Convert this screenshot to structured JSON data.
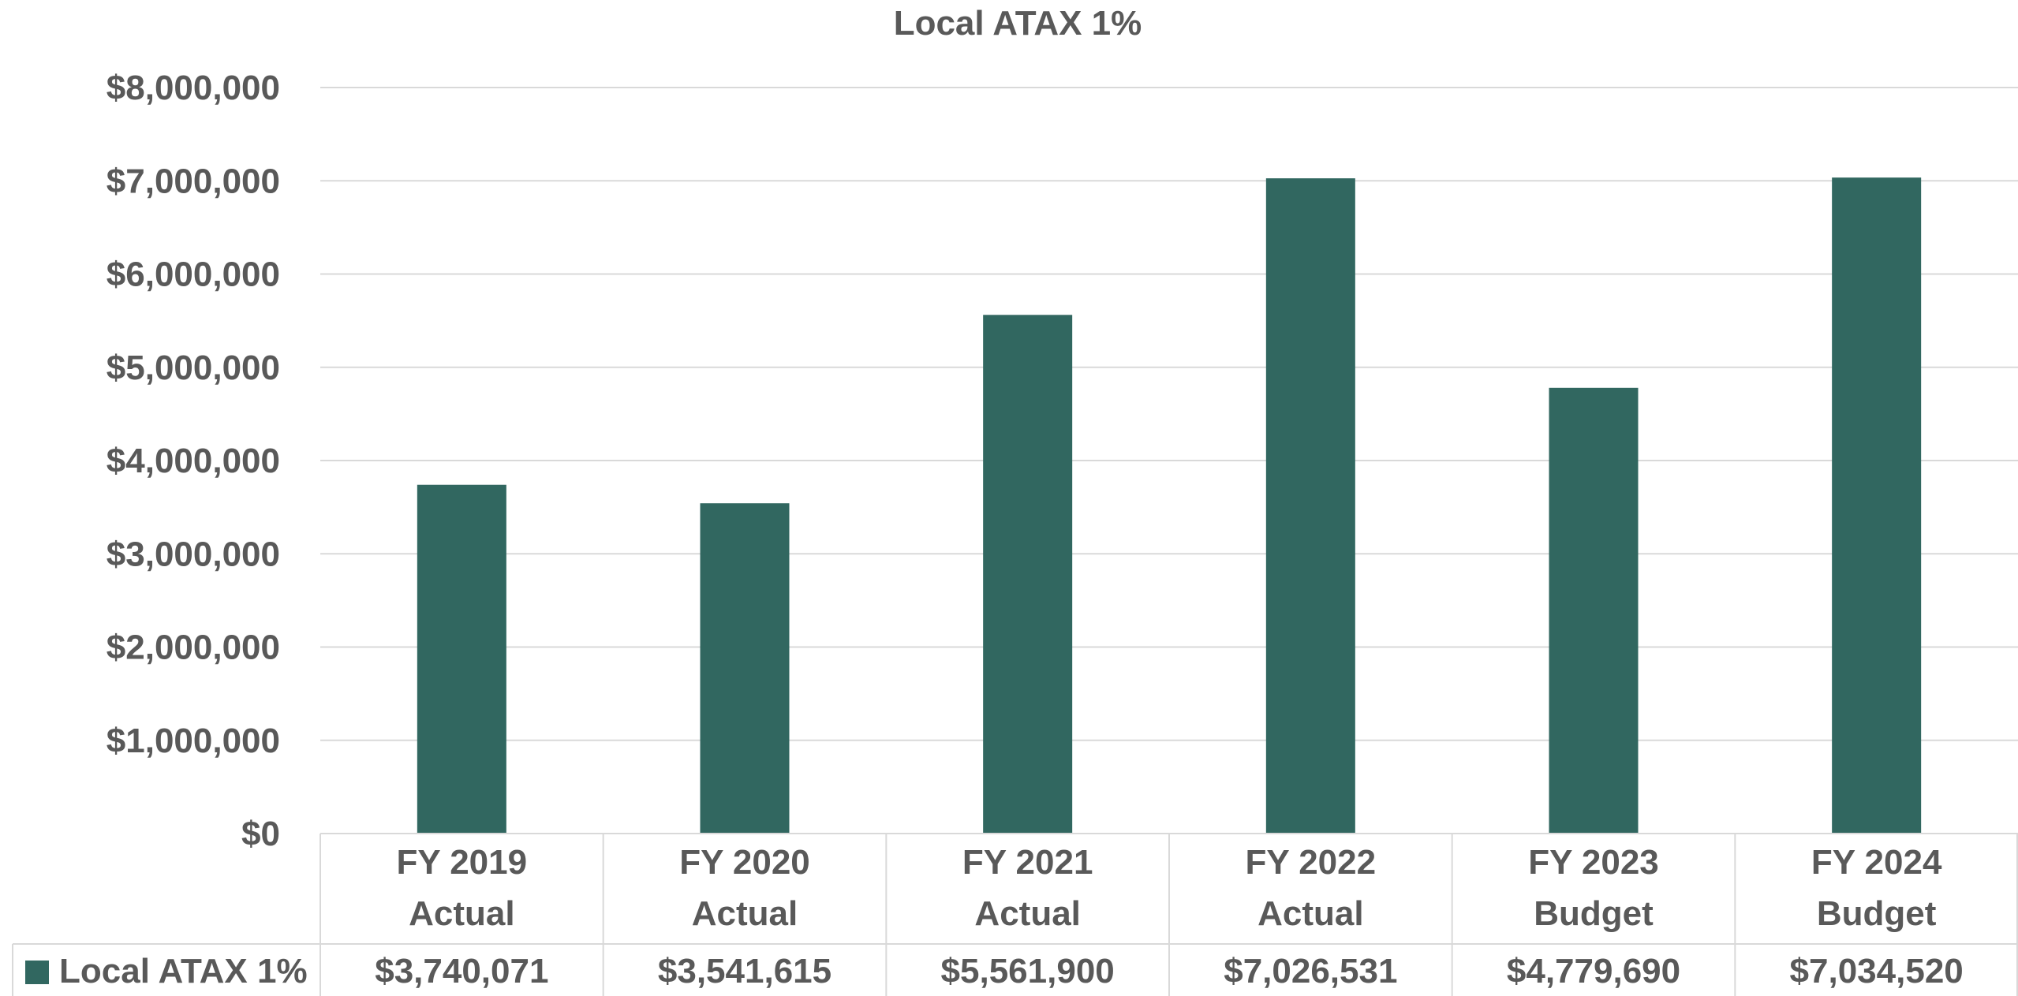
{
  "chart_data": {
    "type": "bar",
    "title": "Local ATAX 1%",
    "categories": [
      [
        "FY 2019",
        "Actual"
      ],
      [
        "FY 2020",
        "Actual"
      ],
      [
        "FY 2021",
        "Actual"
      ],
      [
        "FY 2022",
        "Actual"
      ],
      [
        "FY 2023",
        "Budget"
      ],
      [
        "FY 2024",
        "Budget"
      ]
    ],
    "series": [
      {
        "name": "Local ATAX 1%",
        "color": "#316760",
        "values": [
          3740071,
          3541615,
          5561900,
          7026531,
          4779690,
          7034520
        ],
        "value_labels": [
          "$3,740,071",
          "$3,541,615",
          "$5,561,900",
          "$7,026,531",
          "$4,779,690",
          "$7,034,520"
        ]
      }
    ],
    "ylim": [
      0,
      8000000
    ],
    "yticks": [
      0,
      1000000,
      2000000,
      3000000,
      4000000,
      5000000,
      6000000,
      7000000,
      8000000
    ],
    "ytick_labels": [
      "$0",
      "$1,000,000",
      "$2,000,000",
      "$3,000,000",
      "$4,000,000",
      "$5,000,000",
      "$6,000,000",
      "$7,000,000",
      "$8,000,000"
    ],
    "grid": true,
    "legend": "data-table",
    "xlabel": "",
    "ylabel": ""
  }
}
